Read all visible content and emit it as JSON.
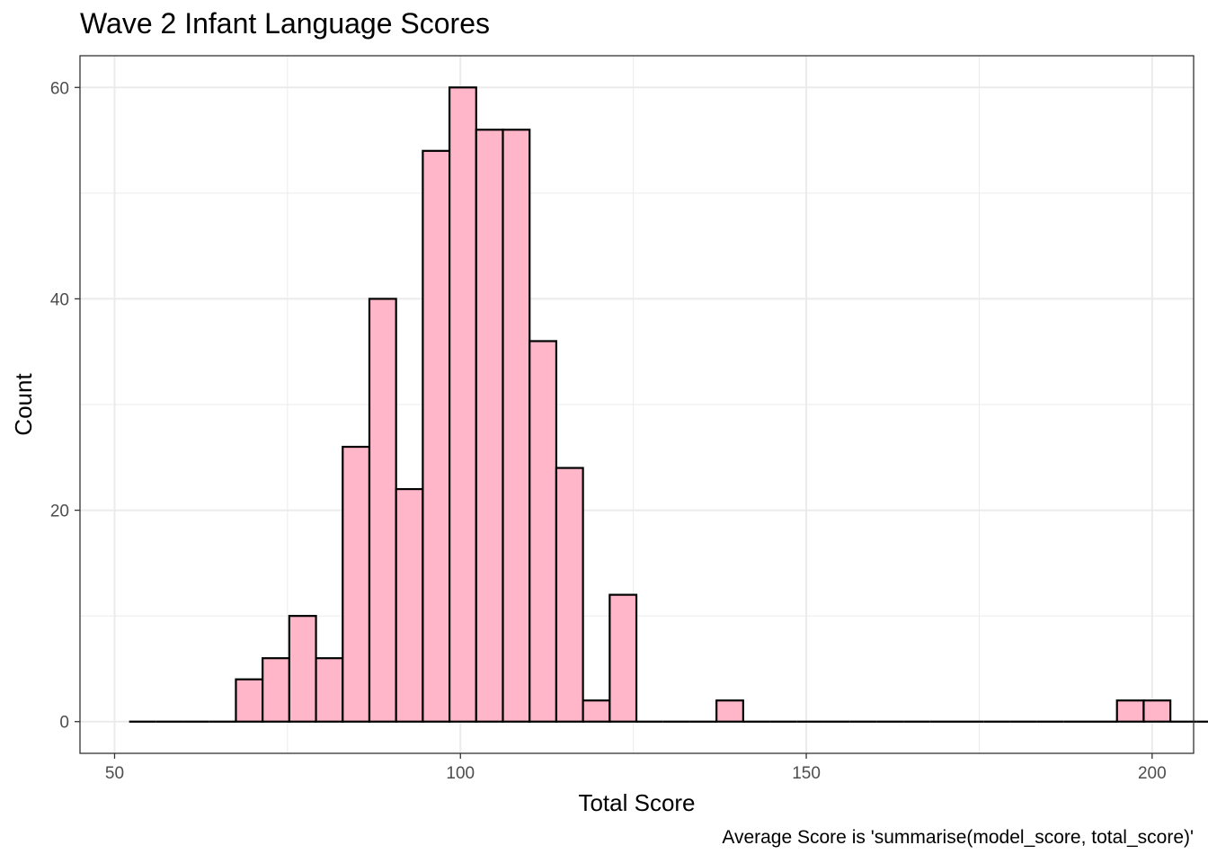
{
  "chart_data": {
    "type": "bar",
    "title": "Wave 2 Infant Language Scores",
    "caption": "Average Score is 'summarise(model_score, total_score)'",
    "xlabel": "Total Score",
    "ylabel": "Count",
    "xlim": [
      45,
      206
    ],
    "ylim": [
      -3,
      63
    ],
    "xticks": [
      50,
      100,
      150,
      200
    ],
    "yticks": [
      0,
      20,
      40,
      60
    ],
    "grid": true,
    "bin_width": 3.86,
    "bin_start": 52.1,
    "values": [
      0,
      0,
      0,
      0,
      4,
      6,
      10,
      6,
      26,
      40,
      22,
      54,
      60,
      56,
      56,
      36,
      24,
      2,
      12,
      0,
      0,
      0,
      2,
      0,
      0,
      0,
      0,
      0,
      0,
      0,
      0,
      0,
      0,
      0,
      0,
      0,
      0,
      2,
      2,
      0,
      0,
      0,
      0
    ],
    "fill_color": "#ffb6c8",
    "stroke_color": "#000000",
    "grid_color": "#ebebeb",
    "panel_border_color": "#333333"
  }
}
